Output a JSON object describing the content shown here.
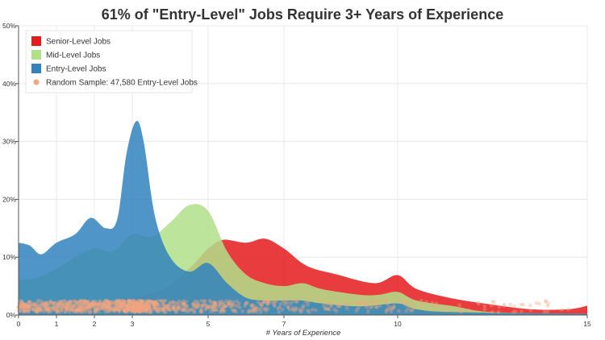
{
  "chart_data": {
    "type": "area",
    "title": "61% of \"Entry-Level\" Jobs Require 3+ Years of Experience",
    "xlabel": "# Years of Experience",
    "ylabel": "",
    "xlim": [
      0,
      15
    ],
    "ylim": [
      0,
      50
    ],
    "x_ticks": [
      {
        "value": 0,
        "label": "0"
      },
      {
        "value": 1,
        "label": "1"
      },
      {
        "value": 2,
        "label": "2"
      },
      {
        "value": 3,
        "label": "3"
      },
      {
        "value": 5,
        "label": "5"
      },
      {
        "value": 7,
        "label": "7"
      },
      {
        "value": 10,
        "label": "10"
      },
      {
        "value": 15,
        "label": "15"
      }
    ],
    "y_ticks": [
      {
        "value": 0,
        "label": "0%"
      },
      {
        "value": 10,
        "label": "10%"
      },
      {
        "value": 20,
        "label": "20%"
      },
      {
        "value": 30,
        "label": "30%"
      },
      {
        "value": 40,
        "label": "40%"
      },
      {
        "value": 50,
        "label": "50%"
      }
    ],
    "grid": true,
    "legend_position": "top-left",
    "series": [
      {
        "name": "Senior-Level Jobs",
        "color": "#e41a1c",
        "points": [
          [
            0,
            0.5
          ],
          [
            1,
            1.0
          ],
          [
            2,
            2.0
          ],
          [
            3,
            3.0
          ],
          [
            3.8,
            4.5
          ],
          [
            4.5,
            8.0
          ],
          [
            5,
            11.5
          ],
          [
            5.4,
            13.0
          ],
          [
            6,
            12.5
          ],
          [
            6.5,
            13.2
          ],
          [
            7,
            11.5
          ],
          [
            7.6,
            8.5
          ],
          [
            8.4,
            7.0
          ],
          [
            9.4,
            5.5
          ],
          [
            10,
            6.9
          ],
          [
            10.5,
            4.5
          ],
          [
            11.5,
            2.8
          ],
          [
            12.5,
            1.8
          ],
          [
            13.5,
            1.0
          ],
          [
            14.5,
            1.0
          ],
          [
            15,
            1.6
          ]
        ]
      },
      {
        "name": "Mid-Level Jobs",
        "color": "#b2df8a",
        "points": [
          [
            0,
            6.0
          ],
          [
            0.5,
            6.5
          ],
          [
            1,
            8.0
          ],
          [
            1.5,
            10.0
          ],
          [
            2,
            11.5
          ],
          [
            2.5,
            11.0
          ],
          [
            3,
            14.0
          ],
          [
            3.5,
            13.5
          ],
          [
            4,
            16.0
          ],
          [
            4.5,
            19.0
          ],
          [
            5,
            18.0
          ],
          [
            5.5,
            11.0
          ],
          [
            6,
            7.0
          ],
          [
            6.5,
            5.5
          ],
          [
            7,
            5.0
          ],
          [
            7.5,
            5.5
          ],
          [
            8,
            4.5
          ],
          [
            9,
            3.5
          ],
          [
            9.5,
            3.5
          ],
          [
            10,
            4.0
          ],
          [
            10.5,
            2.5
          ],
          [
            11.5,
            1.5
          ],
          [
            12.5,
            0.5
          ],
          [
            15,
            0.2
          ]
        ]
      },
      {
        "name": "Entry-Level Jobs",
        "color": "#3182bd",
        "points": [
          [
            0,
            12.5
          ],
          [
            0.3,
            12.0
          ],
          [
            0.6,
            10.5
          ],
          [
            1,
            12.5
          ],
          [
            1.5,
            14.0
          ],
          [
            1.9,
            16.8
          ],
          [
            2.3,
            15.0
          ],
          [
            2.6,
            16.5
          ],
          [
            2.85,
            28.0
          ],
          [
            3.1,
            33.5
          ],
          [
            3.3,
            30.0
          ],
          [
            3.6,
            17.0
          ],
          [
            4,
            10.0
          ],
          [
            4.5,
            7.5
          ],
          [
            5,
            9.0
          ],
          [
            5.5,
            5.5
          ],
          [
            6,
            3.0
          ],
          [
            6.5,
            2.5
          ],
          [
            7,
            2.5
          ],
          [
            7.5,
            2.5
          ],
          [
            8,
            2.0
          ],
          [
            9,
            1.5
          ],
          [
            10,
            2.0
          ],
          [
            10.5,
            1.0
          ],
          [
            11.5,
            0.5
          ],
          [
            15,
            0.2
          ]
        ]
      }
    ],
    "scatter": {
      "name": "Random Sample: 47,580 Entry-Level Jobs",
      "color": "#f4a582",
      "sample_size": 47580,
      "y_band": [
        0.5,
        2.5
      ]
    }
  }
}
